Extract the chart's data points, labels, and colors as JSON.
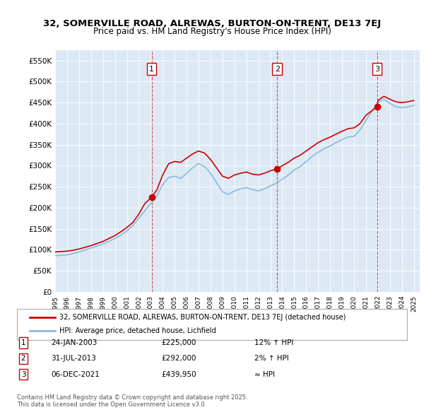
{
  "title": "32, SOMERVILLE ROAD, ALREWAS, BURTON-ON-TRENT, DE13 7EJ",
  "subtitle": "Price paid vs. HM Land Registry's House Price Index (HPI)",
  "ylim": [
    0,
    575000
  ],
  "yticks": [
    0,
    50000,
    100000,
    150000,
    200000,
    250000,
    300000,
    350000,
    400000,
    450000,
    500000,
    550000
  ],
  "ytick_labels": [
    "£0",
    "£50K",
    "£100K",
    "£150K",
    "£200K",
    "£250K",
    "£300K",
    "£350K",
    "£400K",
    "£450K",
    "£500K",
    "£550K"
  ],
  "xlim_start": 1995.0,
  "xlim_end": 2025.5,
  "background_color": "#dce9f5",
  "plot_bg_color": "#dce9f5",
  "red_color": "#cc0000",
  "blue_color": "#88bbdd",
  "sale_color": "#cc0000",
  "sales": [
    {
      "year": 2003.07,
      "price": 225000,
      "label": "1",
      "date": "24-JAN-2003",
      "hpi_diff": "12% ↑ HPI"
    },
    {
      "year": 2013.58,
      "price": 292000,
      "label": "2",
      "date": "31-JUL-2013",
      "hpi_diff": "2% ↑ HPI"
    },
    {
      "year": 2021.93,
      "price": 439950,
      "label": "3",
      "date": "06-DEC-2021",
      "hpi_diff": "≈ HPI"
    }
  ],
  "legend_label_red": "32, SOMERVILLE ROAD, ALREWAS, BURTON-ON-TRENT, DE13 7EJ (detached house)",
  "legend_label_blue": "HPI: Average price, detached house, Lichfield",
  "footer": "Contains HM Land Registry data © Crown copyright and database right 2025.\nThis data is licensed under the Open Government Licence v3.0.",
  "red_line": {
    "x": [
      1995.0,
      1995.5,
      1996.0,
      1996.5,
      1997.0,
      1997.5,
      1998.0,
      1998.5,
      1999.0,
      1999.5,
      2000.0,
      2000.5,
      2001.0,
      2001.5,
      2002.0,
      2002.5,
      2003.07,
      2003.5,
      2004.0,
      2004.5,
      2005.0,
      2005.5,
      2006.0,
      2006.5,
      2007.0,
      2007.5,
      2008.0,
      2008.5,
      2009.0,
      2009.5,
      2010.0,
      2010.5,
      2011.0,
      2011.5,
      2012.0,
      2012.5,
      2013.0,
      2013.58,
      2014.0,
      2014.5,
      2015.0,
      2015.5,
      2016.0,
      2016.5,
      2017.0,
      2017.5,
      2018.0,
      2018.5,
      2019.0,
      2019.5,
      2020.0,
      2020.5,
      2021.0,
      2021.93,
      2022.0,
      2022.5,
      2023.0,
      2023.5,
      2024.0,
      2024.5,
      2025.0
    ],
    "y": [
      95000,
      96000,
      97000,
      99000,
      102000,
      106000,
      110000,
      115000,
      120000,
      127000,
      134000,
      143000,
      153000,
      165000,
      185000,
      210000,
      225000,
      242000,
      278000,
      305000,
      310000,
      308000,
      318000,
      328000,
      335000,
      330000,
      315000,
      295000,
      275000,
      270000,
      278000,
      282000,
      285000,
      280000,
      278000,
      282000,
      288000,
      292000,
      300000,
      308000,
      318000,
      325000,
      335000,
      345000,
      355000,
      362000,
      368000,
      375000,
      382000,
      388000,
      390000,
      400000,
      420000,
      439950,
      455000,
      465000,
      458000,
      452000,
      450000,
      452000,
      455000
    ]
  },
  "blue_line": {
    "x": [
      1995.0,
      1995.5,
      1996.0,
      1996.5,
      1997.0,
      1997.5,
      1998.0,
      1998.5,
      1999.0,
      1999.5,
      2000.0,
      2000.5,
      2001.0,
      2001.5,
      2002.0,
      2002.5,
      2003.0,
      2003.5,
      2004.0,
      2004.5,
      2005.0,
      2005.5,
      2006.0,
      2006.5,
      2007.0,
      2007.5,
      2008.0,
      2008.5,
      2009.0,
      2009.5,
      2010.0,
      2010.5,
      2011.0,
      2011.5,
      2012.0,
      2012.5,
      2013.0,
      2013.5,
      2014.0,
      2014.5,
      2015.0,
      2015.5,
      2016.0,
      2016.5,
      2017.0,
      2017.5,
      2018.0,
      2018.5,
      2019.0,
      2019.5,
      2020.0,
      2020.5,
      2021.0,
      2021.5,
      2022.0,
      2022.5,
      2023.0,
      2023.5,
      2024.0,
      2024.5,
      2025.0
    ],
    "y": [
      86000,
      87000,
      88000,
      91000,
      95000,
      100000,
      104000,
      109000,
      114000,
      120000,
      127000,
      135000,
      145000,
      158000,
      175000,
      193000,
      210000,
      228000,
      255000,
      272000,
      275000,
      270000,
      282000,
      295000,
      305000,
      298000,
      282000,
      260000,
      238000,
      232000,
      240000,
      245000,
      248000,
      243000,
      240000,
      245000,
      252000,
      258000,
      268000,
      278000,
      290000,
      298000,
      310000,
      322000,
      332000,
      340000,
      347000,
      355000,
      362000,
      368000,
      370000,
      385000,
      408000,
      430000,
      450000,
      458000,
      448000,
      440000,
      438000,
      440000,
      443000
    ]
  }
}
